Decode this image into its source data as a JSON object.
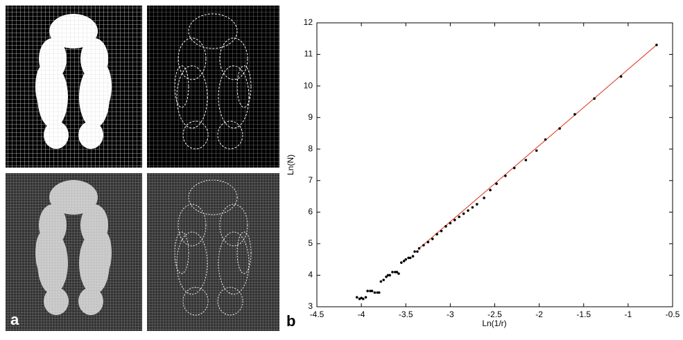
{
  "panel_labels": [
    "a",
    "b"
  ],
  "chart_data": {
    "type": "scatter",
    "xlabel": "Ln(1/r)",
    "ylabel": "Ln(N)",
    "x": [
      -4.05,
      -4.02,
      -4.0,
      -3.98,
      -3.95,
      -3.93,
      -3.9,
      -3.88,
      -3.85,
      -3.82,
      -3.8,
      -3.78,
      -3.75,
      -3.72,
      -3.7,
      -3.68,
      -3.65,
      -3.62,
      -3.6,
      -3.58,
      -3.55,
      -3.52,
      -3.5,
      -3.47,
      -3.45,
      -3.42,
      -3.4,
      -3.37,
      -3.35,
      -3.3,
      -3.25,
      -3.2,
      -3.15,
      -3.1,
      -3.05,
      -3.0,
      -2.95,
      -2.9,
      -2.85,
      -2.8,
      -2.75,
      -2.7,
      -2.62,
      -2.55,
      -2.48,
      -2.38,
      -2.28,
      -2.15,
      -2.03,
      -1.93,
      -1.77,
      -1.6,
      -1.38,
      -1.08,
      -0.68
    ],
    "y": [
      3.3,
      3.25,
      3.28,
      3.25,
      3.3,
      3.5,
      3.5,
      3.5,
      3.45,
      3.45,
      3.45,
      3.8,
      3.85,
      3.95,
      4.0,
      4.0,
      4.1,
      4.1,
      4.1,
      4.05,
      4.4,
      4.45,
      4.5,
      4.55,
      4.55,
      4.6,
      4.75,
      4.75,
      4.85,
      4.95,
      5.05,
      5.15,
      5.3,
      5.4,
      5.55,
      5.65,
      5.75,
      5.85,
      5.95,
      6.05,
      6.15,
      6.25,
      6.45,
      6.7,
      6.9,
      7.15,
      7.4,
      7.65,
      7.95,
      8.3,
      8.65,
      9.1,
      9.6,
      10.3,
      11.3
    ],
    "color": "#000000",
    "fit": {
      "x": [
        -3.35,
        -0.68
      ],
      "y": [
        4.85,
        11.3
      ],
      "color": "#e0503a"
    },
    "xlim": [
      -4.5,
      -0.5
    ],
    "xticks": [
      -4.5,
      -4,
      -3.5,
      -3,
      -2.5,
      -2,
      -1.5,
      -1,
      -0.5
    ],
    "ylim": [
      3,
      12
    ],
    "yticks": [
      3,
      4,
      5,
      6,
      7,
      8,
      9,
      10,
      11,
      12
    ]
  }
}
